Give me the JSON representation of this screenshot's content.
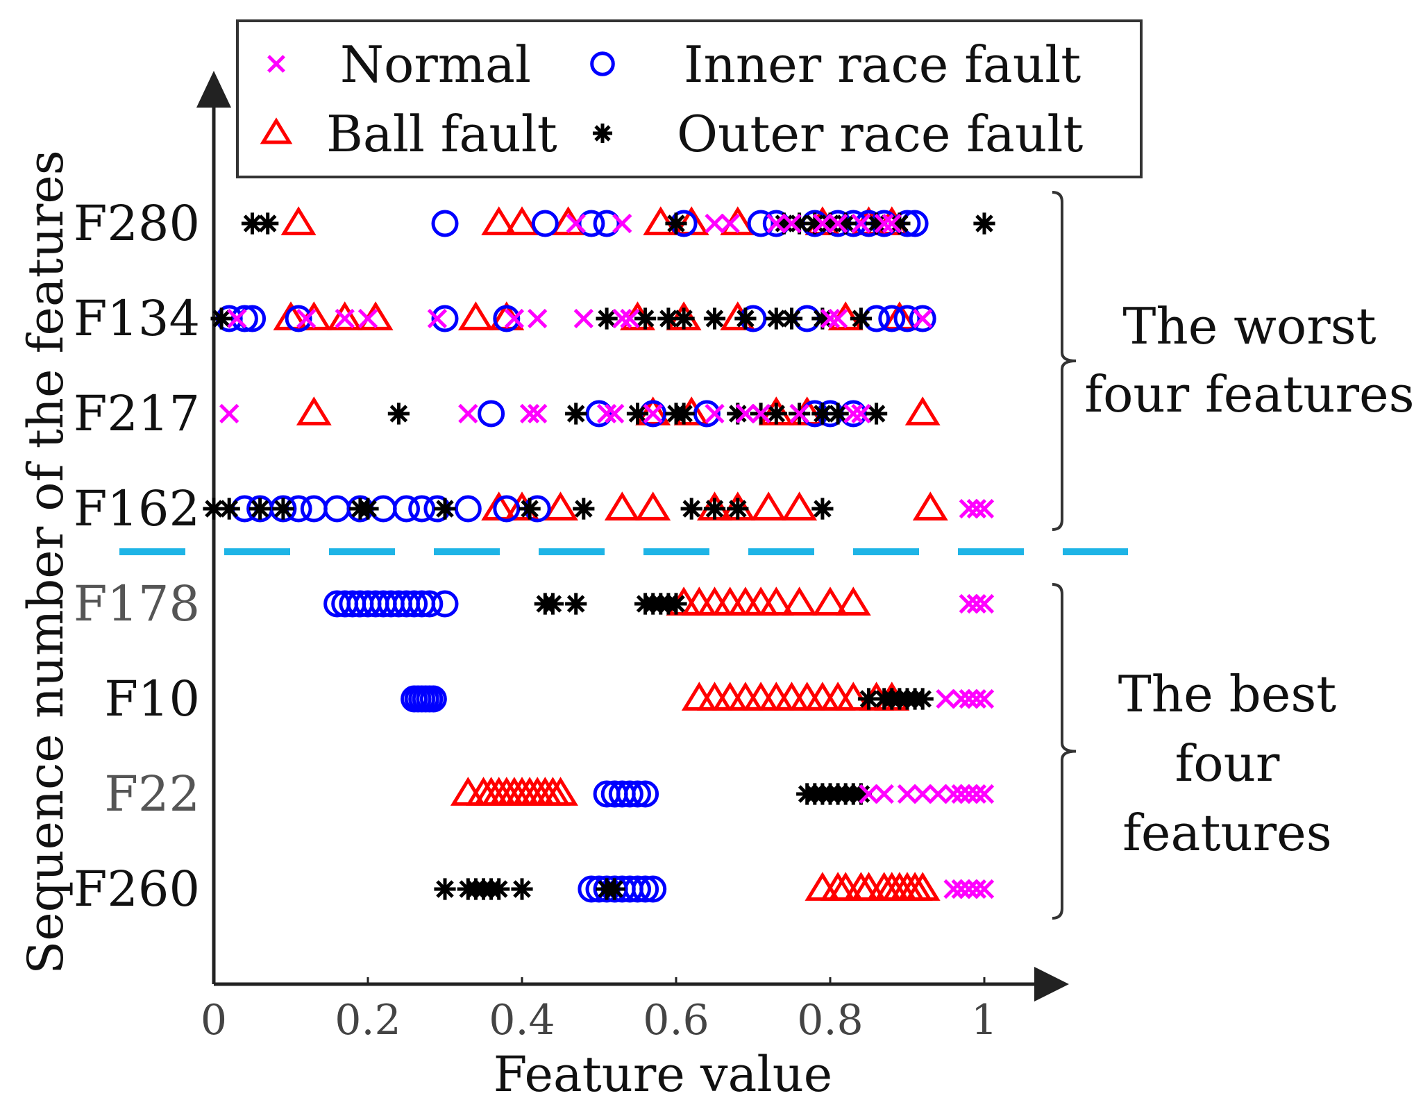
{
  "chart_data": {
    "type": "scatter",
    "xlabel": "Feature value",
    "ylabel": "Sequence number of the features",
    "xlim": [
      0,
      1.1
    ],
    "xticks": [
      "0",
      "0.2",
      "0.4",
      "0.6",
      "0.8",
      "1"
    ],
    "xtick_values": [
      0,
      0.2,
      0.4,
      0.6,
      0.8,
      1
    ],
    "grid": false,
    "legend_position": "top",
    "features": [
      "F280",
      "F134",
      "F217",
      "F162",
      "F178",
      "F10",
      "F22",
      "F260"
    ],
    "series": [
      {
        "name": "Normal",
        "marker": "x",
        "color": "#ff00ff",
        "values": {
          "F280": [
            0.47,
            0.53,
            0.65,
            0.67,
            0.73,
            0.75,
            0.79,
            0.81,
            0.84,
            0.87,
            0.88
          ],
          "F134": [
            0.03,
            0.12,
            0.17,
            0.2,
            0.29,
            0.39,
            0.42,
            0.48,
            0.53,
            0.54,
            0.8,
            0.81,
            0.92
          ],
          "F217": [
            0.02,
            0.33,
            0.41,
            0.42,
            0.51,
            0.52,
            0.57,
            0.65,
            0.69,
            0.71,
            0.76,
            0.83,
            0.84
          ],
          "F162": [
            0.98,
            0.99,
            1.0
          ],
          "F178": [
            0.98,
            0.99,
            1.0
          ],
          "F10": [
            0.95,
            0.97,
            0.98,
            0.99,
            1.0
          ],
          "F22": [
            0.85,
            0.87,
            0.9,
            0.92,
            0.94,
            0.96,
            0.97,
            0.98,
            0.99,
            1.0
          ],
          "F260": [
            0.96,
            0.97,
            0.98,
            0.99,
            1.0
          ]
        }
      },
      {
        "name": "Inner race fault",
        "marker": "o",
        "color": "#0000ff",
        "values": {
          "F280": [
            0.3,
            0.43,
            0.49,
            0.51,
            0.61,
            0.71,
            0.73,
            0.78,
            0.81,
            0.83,
            0.85,
            0.87,
            0.9,
            0.91
          ],
          "F134": [
            0.02,
            0.04,
            0.05,
            0.11,
            0.3,
            0.38,
            0.7,
            0.77,
            0.86,
            0.88,
            0.9,
            0.92
          ],
          "F217": [
            0.36,
            0.5,
            0.57,
            0.64,
            0.78,
            0.8,
            0.83
          ],
          "F162": [
            0.04,
            0.06,
            0.09,
            0.11,
            0.13,
            0.16,
            0.19,
            0.22,
            0.25,
            0.27,
            0.29,
            0.33,
            0.38,
            0.42
          ],
          "F178": [
            0.16,
            0.17,
            0.18,
            0.19,
            0.2,
            0.21,
            0.22,
            0.23,
            0.24,
            0.25,
            0.26,
            0.27,
            0.28,
            0.3
          ],
          "F10": [
            0.26,
            0.265,
            0.27,
            0.275,
            0.28,
            0.285
          ],
          "F22": [
            0.51,
            0.52,
            0.53,
            0.54,
            0.55,
            0.56
          ],
          "F260": [
            0.49,
            0.5,
            0.51,
            0.52,
            0.53,
            0.54,
            0.55,
            0.56,
            0.57
          ]
        }
      },
      {
        "name": "Ball fault",
        "marker": "triangle",
        "color": "#ff0000",
        "values": {
          "F280": [
            0.11,
            0.37,
            0.4,
            0.46,
            0.58,
            0.62,
            0.68,
            0.79,
            0.85,
            0.88
          ],
          "F134": [
            0.1,
            0.13,
            0.17,
            0.21,
            0.34,
            0.38,
            0.55,
            0.61,
            0.68,
            0.82,
            0.89
          ],
          "F217": [
            0.13,
            0.57,
            0.62,
            0.73,
            0.77,
            0.92
          ],
          "F162": [
            0.37,
            0.4,
            0.45,
            0.53,
            0.57,
            0.65,
            0.68,
            0.72,
            0.76,
            0.93
          ],
          "F178": [
            0.61,
            0.63,
            0.65,
            0.67,
            0.69,
            0.71,
            0.73,
            0.76,
            0.8,
            0.83
          ],
          "F10": [
            0.63,
            0.65,
            0.67,
            0.69,
            0.71,
            0.73,
            0.75,
            0.77,
            0.79,
            0.81,
            0.83,
            0.86,
            0.88
          ],
          "F22": [
            0.33,
            0.35,
            0.36,
            0.37,
            0.38,
            0.39,
            0.4,
            0.41,
            0.42,
            0.43,
            0.44,
            0.45
          ],
          "F260": [
            0.79,
            0.81,
            0.82,
            0.84,
            0.85,
            0.87,
            0.88,
            0.89,
            0.9,
            0.91,
            0.92
          ]
        }
      },
      {
        "name": "Outer race fault",
        "marker": "*",
        "color": "#000000",
        "values": {
          "F280": [
            0.05,
            0.07,
            0.6,
            0.74,
            0.76,
            0.78,
            0.8,
            0.82,
            0.86,
            0.89,
            1.0
          ],
          "F134": [
            0.01,
            0.51,
            0.56,
            0.59,
            0.61,
            0.65,
            0.69,
            0.73,
            0.75,
            0.79,
            0.84
          ],
          "F217": [
            0.24,
            0.47,
            0.55,
            0.6,
            0.61,
            0.68,
            0.71,
            0.73,
            0.76,
            0.79,
            0.81,
            0.86
          ],
          "F162": [
            0.0,
            0.02,
            0.06,
            0.09,
            0.19,
            0.2,
            0.3,
            0.41,
            0.48,
            0.62,
            0.65,
            0.68,
            0.79
          ],
          "F178": [
            0.43,
            0.44,
            0.47,
            0.56,
            0.57,
            0.58,
            0.59,
            0.6
          ],
          "F10": [
            0.85,
            0.87,
            0.88,
            0.89,
            0.9,
            0.91,
            0.92
          ],
          "F22": [
            0.77,
            0.78,
            0.79,
            0.8,
            0.81,
            0.82,
            0.83,
            0.84
          ],
          "F260": [
            0.3,
            0.33,
            0.34,
            0.35,
            0.36,
            0.37,
            0.4,
            0.51,
            0.52
          ]
        }
      }
    ],
    "annotations": [
      {
        "text_lines": [
          "The worst",
          "four features"
        ],
        "features": [
          "F280",
          "F134",
          "F217",
          "F162"
        ]
      },
      {
        "text_lines": [
          "The best",
          "four",
          "features"
        ],
        "features": [
          "F178",
          "F10",
          "F22",
          "F260"
        ]
      }
    ]
  }
}
